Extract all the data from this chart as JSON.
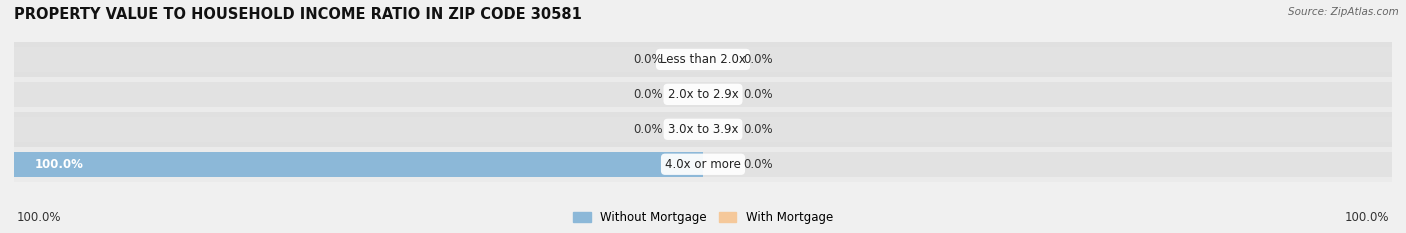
{
  "title": "PROPERTY VALUE TO HOUSEHOLD INCOME RATIO IN ZIP CODE 30581",
  "source": "Source: ZipAtlas.com",
  "categories": [
    "Less than 2.0x",
    "2.0x to 2.9x",
    "3.0x to 3.9x",
    "4.0x or more"
  ],
  "without_mortgage": [
    0.0,
    0.0,
    0.0,
    100.0
  ],
  "with_mortgage": [
    0.0,
    0.0,
    0.0,
    0.0
  ],
  "bar_color_blue": "#8cb8d8",
  "bar_color_orange": "#f5c89a",
  "bg_bar_color": "#e2e2e2",
  "bg_color": "#f0f0f0",
  "row_bg_even": "#e8e8e8",
  "row_bg_odd": "#d8d8d8",
  "title_fontsize": 10.5,
  "label_fontsize": 8.5,
  "tick_fontsize": 8.5,
  "x_left_label": "100.0%",
  "x_right_label": "100.0%",
  "xlim": 100
}
